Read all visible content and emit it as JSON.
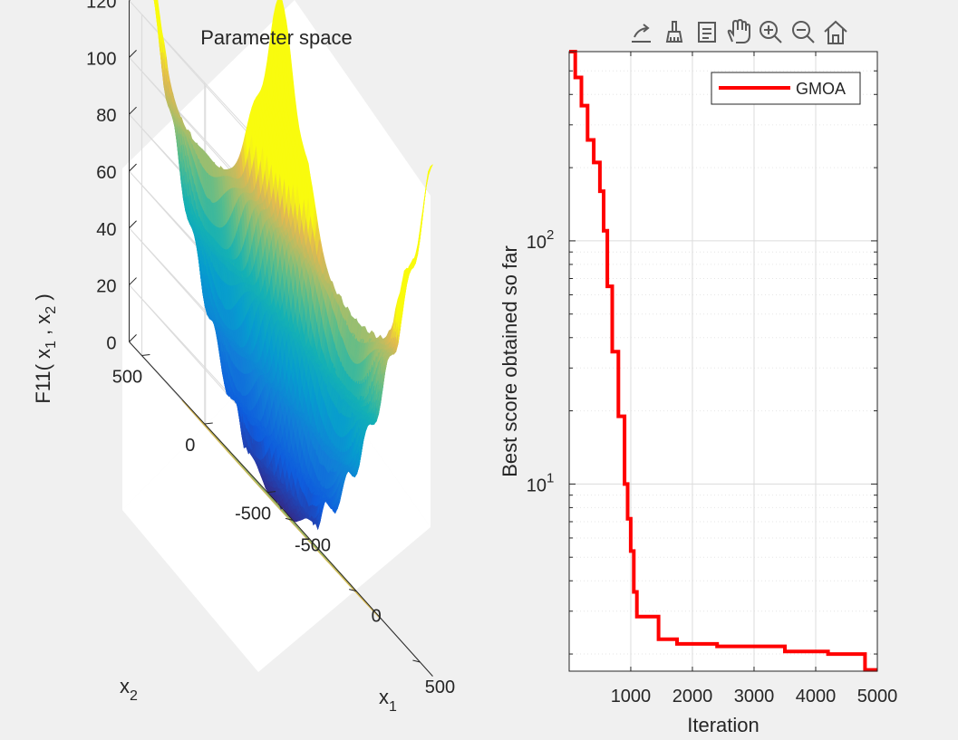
{
  "toolbar": {
    "items": [
      {
        "name": "export-icon"
      },
      {
        "name": "brush-icon"
      },
      {
        "name": "data-tips-icon"
      },
      {
        "name": "pan-hand-icon"
      },
      {
        "name": "zoom-in-icon"
      },
      {
        "name": "zoom-out-icon"
      },
      {
        "name": "home-icon"
      }
    ]
  },
  "chart_data": [
    {
      "type": "surface3d",
      "title": "Parameter space",
      "zlabel": "F11( x_1 , x_2 )",
      "xlabel": "x_1",
      "ylabel": "x_2",
      "z_ticks": [
        "0",
        "20",
        "40",
        "60",
        "80",
        "100",
        "120"
      ],
      "zlim": [
        0,
        120
      ],
      "x_ticks": [
        "-500",
        "0",
        "500"
      ],
      "y_ticks": [
        "-500",
        "0",
        "500"
      ],
      "xlim": [
        -600,
        600
      ],
      "ylim": [
        -600,
        600
      ],
      "function": "griewank",
      "contours_on_floor": true,
      "colormap": "parula"
    },
    {
      "type": "line",
      "xlabel": "Iteration",
      "ylabel": "Best score obtained so far",
      "yscale": "log",
      "xlim": [
        1,
        5000
      ],
      "ylim": [
        1.7,
        600
      ],
      "x_ticks": [
        "1000",
        "2000",
        "3000",
        "4000",
        "5000"
      ],
      "y_ticks": [
        {
          "base": "10",
          "exp": "1",
          "value": 10
        },
        {
          "base": "10",
          "exp": "2",
          "value": 100
        }
      ],
      "grid": true,
      "legend": "top-right",
      "series": [
        {
          "name": "GMOA",
          "color": "#ff0000",
          "x": [
            1,
            100,
            200,
            300,
            400,
            500,
            560,
            620,
            700,
            800,
            900,
            950,
            1000,
            1050,
            1100,
            1150,
            1400,
            1450,
            1700,
            1750,
            2300,
            2400,
            3100,
            3500,
            4100,
            4200,
            4750,
            4800,
            5000
          ],
          "y": [
            600,
            470,
            360,
            260,
            210,
            160,
            110,
            65,
            35,
            19,
            10,
            7.2,
            5.3,
            3.6,
            2.85,
            2.85,
            2.85,
            2.3,
            2.3,
            2.2,
            2.2,
            2.15,
            2.15,
            2.05,
            2.05,
            2.0,
            2.0,
            1.72,
            1.72
          ]
        }
      ]
    }
  ]
}
